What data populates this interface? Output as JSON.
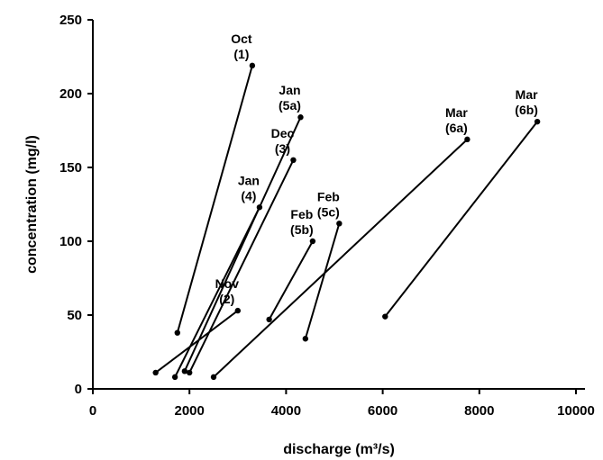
{
  "colors": {
    "line": "#000000",
    "background": "#ffffff"
  },
  "chart_data": {
    "type": "line",
    "title": "",
    "xlabel": "discharge (m³/s)",
    "ylabel": "concentration (mg/l)",
    "xlim": [
      0,
      10000
    ],
    "ylim": [
      0,
      250
    ],
    "xticks": [
      "0",
      "2000",
      "4000",
      "6000",
      "8000",
      "10000"
    ],
    "yticks": [
      "0",
      "50",
      "100",
      "150",
      "200",
      "250"
    ],
    "grid": false,
    "series": [
      {
        "name": "Oct (1)",
        "label_lines": [
          "Oct",
          "(1)"
        ],
        "points": [
          [
            1750,
            38
          ],
          [
            3300,
            219
          ]
        ]
      },
      {
        "name": "Nov (2)",
        "label_lines": [
          "Nov",
          "(2)"
        ],
        "points": [
          [
            1300,
            11
          ],
          [
            3000,
            53
          ]
        ]
      },
      {
        "name": "Dec (3)",
        "label_lines": [
          "Dec",
          "(3)"
        ],
        "points": [
          [
            2000,
            11
          ],
          [
            4150,
            155
          ]
        ]
      },
      {
        "name": "Jan (4)",
        "label_lines": [
          "Jan",
          "(4)"
        ],
        "points": [
          [
            1700,
            8
          ],
          [
            3450,
            123
          ]
        ]
      },
      {
        "name": "Jan (5a)",
        "label_lines": [
          "Jan",
          "(5a)"
        ],
        "points": [
          [
            1900,
            12
          ],
          [
            4300,
            184
          ]
        ]
      },
      {
        "name": "Feb (5b)",
        "label_lines": [
          "Feb",
          "(5b)"
        ],
        "points": [
          [
            3650,
            47
          ],
          [
            4550,
            100
          ]
        ]
      },
      {
        "name": "Feb (5c)",
        "label_lines": [
          "Feb",
          "(5c)"
        ],
        "points": [
          [
            4400,
            34
          ],
          [
            5100,
            112
          ]
        ]
      },
      {
        "name": "Mar (6a)",
        "label_lines": [
          "Mar",
          "(6a)"
        ],
        "points": [
          [
            2500,
            8
          ],
          [
            7750,
            169
          ]
        ]
      },
      {
        "name": "Mar (6b)",
        "label_lines": [
          "Mar",
          "(6b)"
        ],
        "points": [
          [
            6050,
            49
          ],
          [
            9200,
            181
          ]
        ]
      }
    ]
  }
}
